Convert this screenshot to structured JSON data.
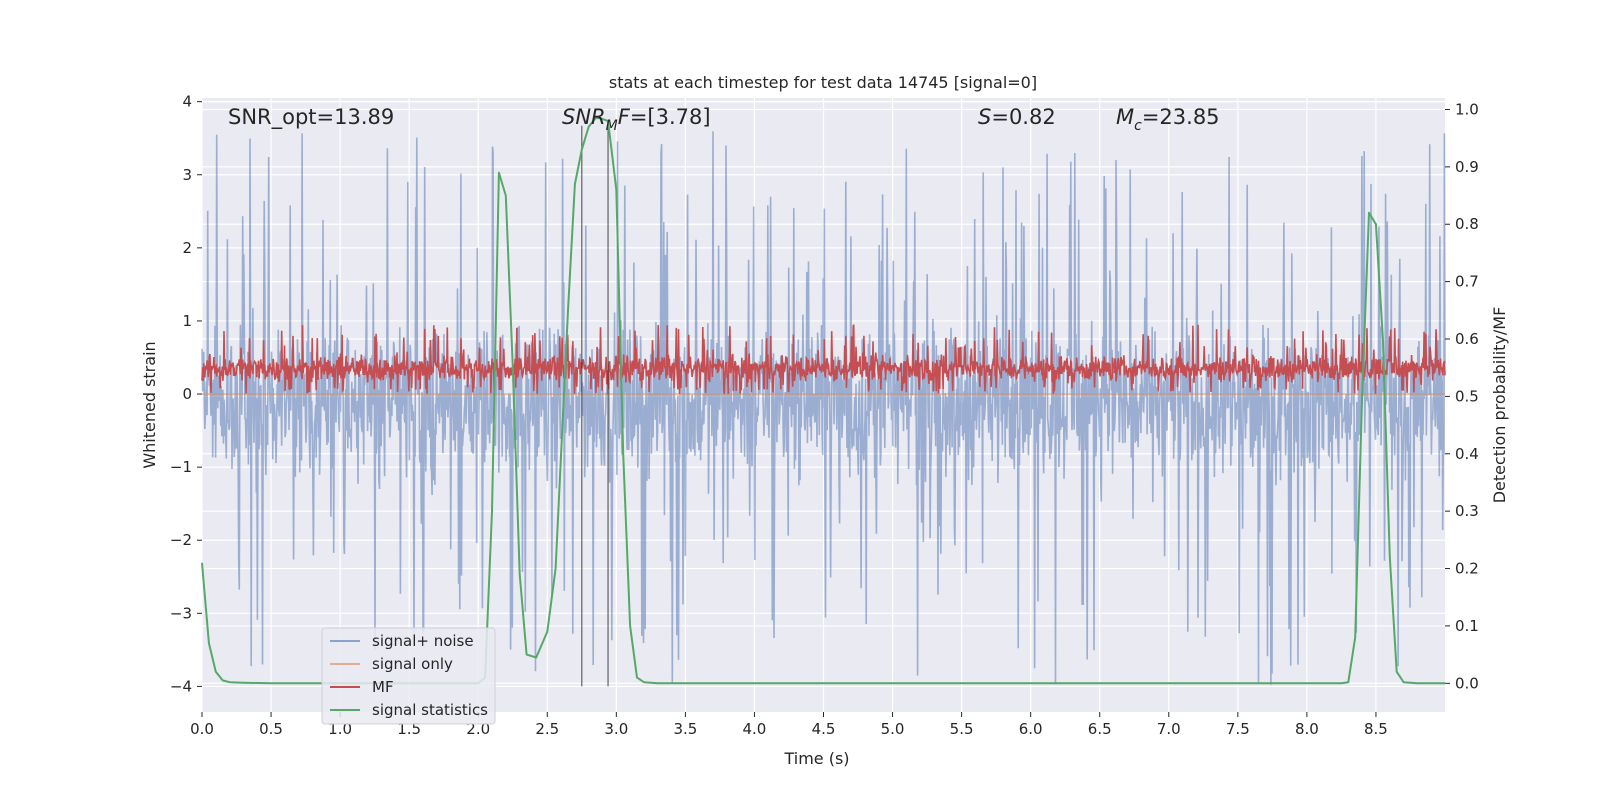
{
  "chart_data": {
    "type": "line",
    "title": "stats at each timestep for test data 14745 [signal=0]",
    "xlabel": "Time (s)",
    "ylabel": "Whitened strain",
    "y2label": "Detection probability/MF",
    "xlim": [
      0.0,
      9.0
    ],
    "ylim": [
      -4.35,
      4.05
    ],
    "y2lim": [
      -0.05,
      1.02
    ],
    "x_ticks": [
      0.0,
      0.5,
      1.0,
      1.5,
      2.0,
      2.5,
      3.0,
      3.5,
      4.0,
      4.5,
      5.0,
      5.5,
      6.0,
      6.5,
      7.0,
      7.5,
      8.0,
      8.5
    ],
    "x_tick_labels": [
      "0.0",
      "0.5",
      "1.0",
      "1.5",
      "2.0",
      "2.5",
      "3.0",
      "3.5",
      "4.0",
      "4.5",
      "5.0",
      "5.5",
      "6.0",
      "6.5",
      "7.0",
      "7.5",
      "8.0",
      "8.5"
    ],
    "y_ticks": [
      4,
      3,
      2,
      1,
      0,
      -1,
      -2,
      -3,
      -4
    ],
    "y_tick_labels": [
      "4",
      "3",
      "2",
      "1",
      "0",
      "−1",
      "−2",
      "−3",
      "−4"
    ],
    "y2_ticks": [
      1.0,
      0.9,
      0.8,
      0.7,
      0.6,
      0.5,
      0.4,
      0.3,
      0.2,
      0.1,
      0.0
    ],
    "y2_tick_labels": [
      "1.0",
      "0.9",
      "0.8",
      "0.7",
      "0.6",
      "0.5",
      "0.4",
      "0.3",
      "0.2",
      "0.1",
      "0.0"
    ],
    "grid": true,
    "legend_position": "lower-left",
    "annotations": {
      "snr_opt": "SNR_opt=13.89",
      "snr_mf_main": "SNR",
      "snr_mf_sub": "M",
      "snr_mf_tail": "F",
      "snr_mf_value": "=[3.78]",
      "s_symbol": "S",
      "s_value": "=0.82",
      "mc_symbol": "M",
      "mc_sub": "c",
      "mc_value": "=23.85"
    },
    "vlines_x": [
      2.75,
      2.94
    ],
    "noise_envelope": {
      "typical_range": [
        -1.6,
        1.4
      ],
      "extreme_range": [
        -4.0,
        3.6
      ]
    },
    "mf_band": {
      "typical_range": [
        0.1,
        0.6
      ],
      "extreme_range": [
        0.0,
        0.95
      ]
    },
    "series": [
      {
        "name": "signal+ noise",
        "color": "#4c72b0",
        "style": "dense-noise",
        "axis": "left"
      },
      {
        "name": "signal only",
        "color": "#dd8452",
        "style": "flat",
        "axis": "left",
        "values_y": [
          0,
          0
        ]
      },
      {
        "name": "MF",
        "color": "#c44e52",
        "style": "dense-noise",
        "axis": "left"
      },
      {
        "name": "signal statistics",
        "color": "#55a868",
        "axis": "right",
        "x": [
          0.0,
          0.05,
          0.1,
          0.15,
          0.2,
          0.3,
          0.5,
          1.0,
          1.5,
          2.0,
          2.05,
          2.1,
          2.15,
          2.2,
          2.25,
          2.3,
          2.35,
          2.42,
          2.5,
          2.56,
          2.6,
          2.65,
          2.7,
          2.75,
          2.8,
          2.85,
          2.88,
          2.94,
          2.98,
          3.0,
          3.05,
          3.1,
          3.15,
          3.2,
          3.3,
          4.0,
          5.0,
          6.0,
          7.0,
          8.0,
          8.25,
          8.3,
          8.35,
          8.4,
          8.45,
          8.5,
          8.55,
          8.6,
          8.65,
          8.7,
          8.8,
          8.9,
          9.0
        ],
        "y": [
          0.21,
          0.07,
          0.02,
          0.005,
          0.002,
          0.001,
          0.0,
          0.0,
          0.0,
          0.0,
          0.01,
          0.3,
          0.89,
          0.85,
          0.55,
          0.19,
          0.05,
          0.045,
          0.09,
          0.2,
          0.4,
          0.65,
          0.87,
          0.93,
          0.97,
          0.985,
          0.985,
          0.98,
          0.9,
          0.86,
          0.4,
          0.1,
          0.01,
          0.002,
          0.0,
          0.0,
          0.0,
          0.0,
          0.0,
          0.0,
          0.0,
          0.002,
          0.08,
          0.5,
          0.82,
          0.8,
          0.6,
          0.22,
          0.02,
          0.002,
          0.0,
          0.0,
          0.0
        ]
      }
    ]
  }
}
